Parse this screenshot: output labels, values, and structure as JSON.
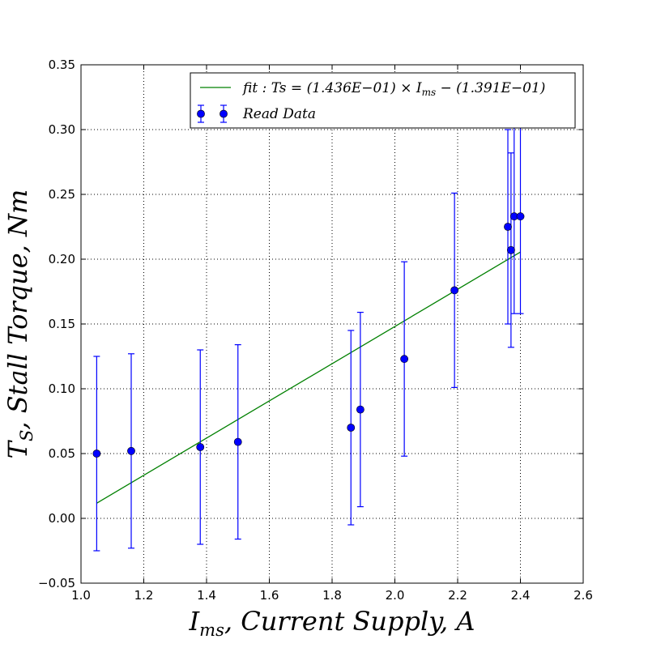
{
  "chart_data": {
    "type": "scatter",
    "title": "",
    "xlabel": "I_ms, Current Supply, A",
    "ylabel": "T_S, Stall Torque, Nm",
    "xlim": [
      1.0,
      2.6
    ],
    "ylim": [
      -0.05,
      0.35
    ],
    "x_ticks": [
      "1.0",
      "1.2",
      "1.4",
      "1.6",
      "1.8",
      "2.0",
      "2.2",
      "2.4",
      "2.6"
    ],
    "y_ticks": [
      "−0.05",
      "0.00",
      "0.05",
      "0.10",
      "0.15",
      "0.20",
      "0.25",
      "0.30",
      "0.35"
    ],
    "grid": true,
    "legend_position": "top-right",
    "series": [
      {
        "name": "Read Data",
        "kind": "errorbar",
        "color": "#0000ff",
        "x": [
          1.05,
          1.16,
          1.38,
          1.5,
          1.86,
          1.89,
          2.03,
          2.19,
          2.36,
          2.37,
          2.38,
          2.4
        ],
        "y": [
          0.05,
          0.052,
          0.055,
          0.059,
          0.07,
          0.084,
          0.123,
          0.176,
          0.225,
          0.207,
          0.233,
          0.233
        ],
        "yerr": [
          0.075,
          0.075,
          0.075,
          0.075,
          0.075,
          0.075,
          0.075,
          0.075,
          0.075,
          0.075,
          0.075,
          0.075
        ]
      },
      {
        "name": "fit: Ts = (1.436E−01) × I_ms − (1.391E−01)",
        "kind": "line",
        "color": "#008000",
        "x": [
          1.05,
          2.4
        ],
        "y": [
          0.0117,
          0.2055
        ]
      }
    ]
  }
}
